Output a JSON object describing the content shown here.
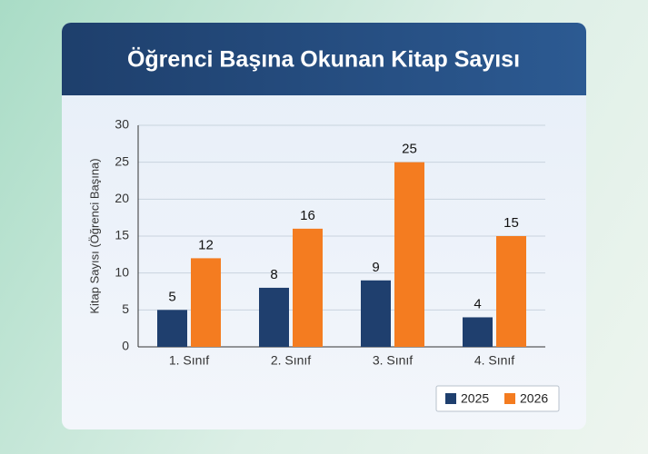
{
  "chart_data": {
    "type": "bar",
    "title": "Öğrenci Başına Okunan Kitap Sayısı",
    "y_label": "Kitap Sayısı (Öğrenci Başına)",
    "categories": [
      "1. Sınıf",
      "2. Sınıf",
      "3. Sınıf",
      "4. Sınıf"
    ],
    "series": [
      {
        "name": "2025",
        "color": "#1f3f6e",
        "values": [
          5,
          8,
          9,
          4
        ]
      },
      {
        "name": "2026",
        "color": "#f47c20",
        "values": [
          12,
          16,
          25,
          15
        ]
      }
    ],
    "ylim": [
      0,
      30
    ],
    "yticks": [
      0,
      5,
      10,
      15,
      20,
      25,
      30
    ],
    "grid": true,
    "legend": "bottom-right"
  }
}
